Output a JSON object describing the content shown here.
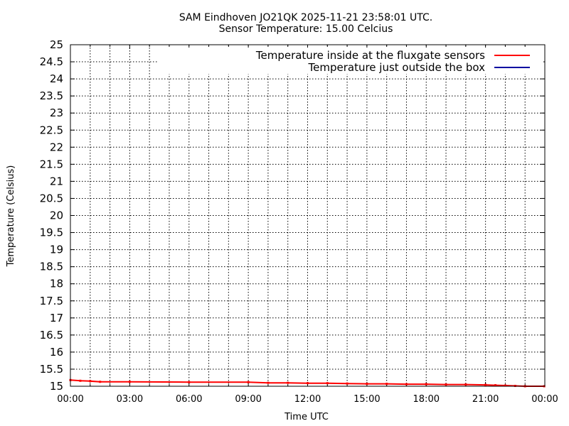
{
  "chart_data": {
    "type": "line",
    "title": "SAM Eindhoven JO21QK 2025-11-21 23:58:01 UTC.",
    "subtitle": "Sensor Temperature: 15.00 Celcius",
    "xlabel": "Time UTC",
    "ylabel": "Temperature (Celsius)",
    "xlim_hours": [
      0,
      24
    ],
    "ylim": [
      15,
      25
    ],
    "x_tick_labels": [
      "00:00",
      "03:00",
      "06:00",
      "09:00",
      "12:00",
      "15:00",
      "18:00",
      "21:00",
      "00:00"
    ],
    "y_tick_labels": [
      "15",
      "15.5",
      "16",
      "16.5",
      "17",
      "17.5",
      "18",
      "18.5",
      "19",
      "19.5",
      "20",
      "20.5",
      "21",
      "21.5",
      "22",
      "22.5",
      "23",
      "23.5",
      "24",
      "24.5",
      "25"
    ],
    "grid": true,
    "legend_position": "top-right",
    "series": [
      {
        "name": "Temperature inside at the fluxgate sensors",
        "color": "#ff0000",
        "x": [
          0,
          0.5,
          1.0,
          1.5,
          3,
          6,
          9,
          10,
          11,
          12,
          13,
          14,
          15,
          16,
          17,
          18,
          19,
          20,
          21,
          21.5,
          22,
          22.5,
          23,
          23.97
        ],
        "y": [
          15.18,
          15.16,
          15.15,
          15.13,
          15.13,
          15.12,
          15.12,
          15.1,
          15.1,
          15.09,
          15.09,
          15.08,
          15.07,
          15.07,
          15.06,
          15.06,
          15.05,
          15.05,
          15.04,
          15.03,
          15.02,
          15.01,
          15.0,
          15.0
        ]
      },
      {
        "name": "Temperature just outside the box",
        "color": "#0000a0",
        "x": [],
        "y": []
      }
    ]
  }
}
